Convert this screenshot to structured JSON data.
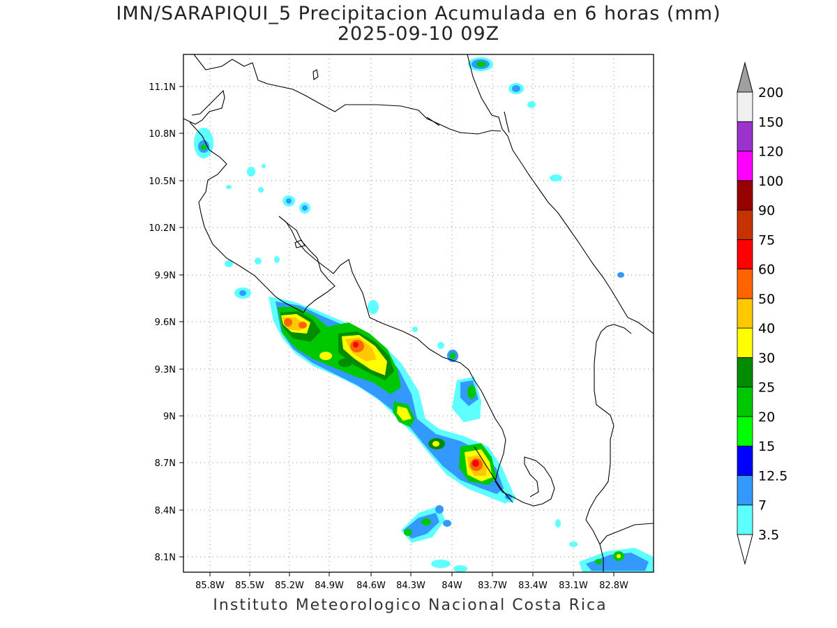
{
  "title": {
    "line1": "IMN/SARAPIQUI_5 Precipitacion Acumulada en 6 horas (mm)",
    "line2": "2025-09-10 09Z"
  },
  "credit": "Instituto Meteorologico Nacional Costa Rica",
  "axes": {
    "x_ticks": [
      "85.8W",
      "85.5W",
      "85.2W",
      "84.9W",
      "84.6W",
      "84.3W",
      "84W",
      "83.7W",
      "83.4W",
      "83.1W",
      "82.8W"
    ],
    "y_ticks": [
      "11.1N",
      "10.8N",
      "10.5N",
      "10.2N",
      "9.9N",
      "9.6N",
      "9.3N",
      "9N",
      "8.7N",
      "8.4N",
      "8.1N"
    ],
    "lon_range": [
      -85.97,
      -82.55
    ],
    "lat_range": [
      8.0,
      11.3
    ],
    "grid": "dotted"
  },
  "colorbar": {
    "levels": [
      "3.5",
      "7",
      "12.5",
      "15",
      "20",
      "25",
      "30",
      "40",
      "50",
      "60",
      "75",
      "90",
      "100",
      "120",
      "150",
      "200"
    ],
    "colors": [
      "#ffffff",
      "#5effff",
      "#3399ff",
      "#0000ff",
      "#00ff00",
      "#00c800",
      "#008c00",
      "#ffff00",
      "#ffc800",
      "#ff6400",
      "#ff0000",
      "#c83200",
      "#960000",
      "#ff00ff",
      "#9933cc",
      "#f0f0f0",
      "#a0a0a0"
    ]
  }
}
